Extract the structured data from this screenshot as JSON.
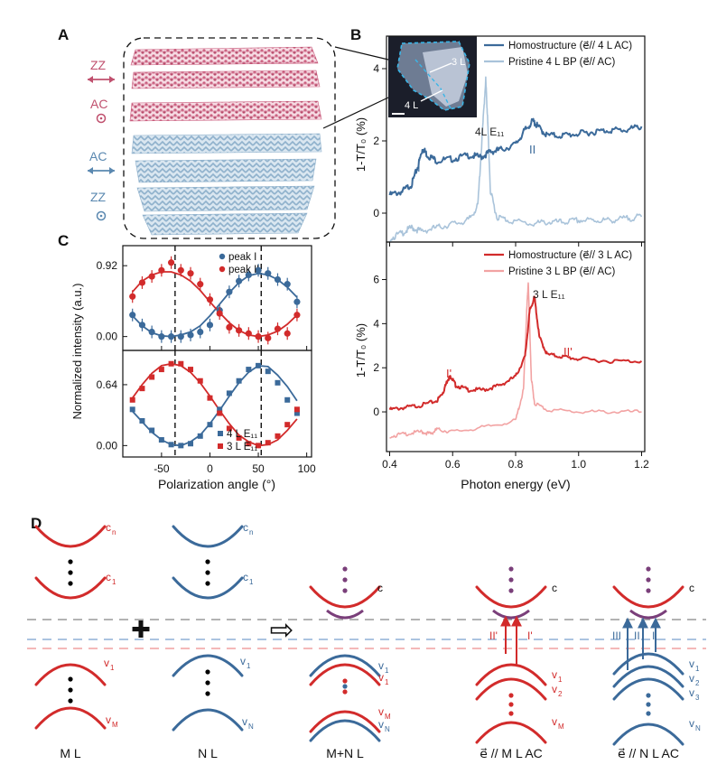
{
  "colors": {
    "red": "#d22b2b",
    "light_red": "#f2a3a3",
    "blue": "#3b6a9a",
    "light_blue": "#a9c3da",
    "purple": "#7a3f7a",
    "gray_dash": "#9a9a9a",
    "blue_dash": "#8fb0d6",
    "red_dash": "#f0a0a0"
  },
  "panelA": {
    "label": "A",
    "zz_top": "ZZ",
    "ac_top": "AC",
    "ac_bottom": "AC",
    "zz_bottom": "ZZ"
  },
  "panelB": {
    "label": "B",
    "inset_labels": [
      "3 L",
      "4 L"
    ],
    "ylabel": "1-T/T₀ (%)",
    "xlabel": "Photon energy (eV)",
    "top": {
      "legend": [
        "Homostructure (e⃗// 4 L AC)",
        "Pristine 4 L BP (e⃗// AC)"
      ],
      "annotations": [
        "I",
        "II",
        "4L E₁₁"
      ]
    },
    "bottom": {
      "legend": [
        "Homostructure (e⃗// 3 L AC)",
        "Pristine 3 L BP (e⃗// AC)"
      ],
      "annotations": [
        "I'",
        "II'",
        "3 L E₁₁"
      ]
    }
  },
  "panelC": {
    "label": "C",
    "ylabel": "Normalized intensity (a.u.)",
    "xlabel": "Polarization angle (°)",
    "top_legend": [
      "peak I",
      "peak I'"
    ],
    "bottom_legend": [
      "4 L E₁₁",
      "3 L E₁₁"
    ]
  },
  "chart_data": [
    {
      "type": "line",
      "title": "Panel B top: 4 L homostructure",
      "xlabel": "Photon energy (eV)",
      "ylabel": "1-T/T0 (%)",
      "xlim": [
        0.39,
        1.21
      ],
      "ylim": [
        -0.8,
        4.9
      ],
      "x_ticks": [
        0.4,
        0.6,
        0.8,
        1.0,
        1.2
      ],
      "y_ticks": [
        0,
        2,
        4
      ],
      "series": [
        {
          "name": "Homostructure (e// 4 L AC)",
          "x": [
            0.4,
            0.44,
            0.47,
            0.49,
            0.505,
            0.52,
            0.55,
            0.6,
            0.65,
            0.69,
            0.72,
            0.75,
            0.8,
            0.83,
            0.855,
            0.87,
            0.9,
            0.95,
            1.0,
            1.05,
            1.1,
            1.15,
            1.2
          ],
          "y": [
            0.5,
            0.6,
            0.8,
            1.3,
            1.8,
            1.6,
            1.45,
            1.5,
            1.6,
            1.55,
            1.7,
            1.75,
            1.9,
            2.3,
            2.55,
            2.4,
            2.15,
            2.15,
            2.2,
            2.25,
            2.3,
            2.3,
            2.4
          ]
        },
        {
          "name": "Pristine 4 L BP (e// AC)",
          "x": [
            0.4,
            0.44,
            0.47,
            0.5,
            0.55,
            0.6,
            0.65,
            0.68,
            0.695,
            0.705,
            0.71,
            0.72,
            0.74,
            0.78,
            0.85,
            0.9,
            0.95,
            1.0,
            1.05,
            1.1,
            1.15,
            1.2
          ],
          "y": [
            -0.7,
            -0.55,
            -0.4,
            -0.5,
            -0.4,
            -0.3,
            -0.2,
            0.2,
            2.3,
            3.7,
            2.8,
            0.6,
            -0.1,
            -0.2,
            -0.3,
            -0.25,
            -0.25,
            -0.2,
            -0.2,
            -0.2,
            -0.15,
            -0.1
          ]
        }
      ]
    },
    {
      "type": "line",
      "title": "Panel B bottom: 3 L homostructure",
      "xlabel": "Photon energy (eV)",
      "ylabel": "1-T/T0 (%)",
      "xlim": [
        0.39,
        1.21
      ],
      "ylim": [
        -1.8,
        7.7
      ],
      "x_ticks": [
        0.4,
        0.6,
        0.8,
        1.0,
        1.2
      ],
      "y_ticks": [
        0,
        2,
        4,
        6
      ],
      "series": [
        {
          "name": "Homostructure (e// 3 L AC)",
          "x": [
            0.4,
            0.45,
            0.5,
            0.55,
            0.57,
            0.585,
            0.595,
            0.61,
            0.65,
            0.7,
            0.75,
            0.8,
            0.83,
            0.845,
            0.86,
            0.875,
            0.9,
            0.95,
            1.0,
            1.1,
            1.2
          ],
          "y": [
            0.1,
            0.2,
            0.3,
            0.5,
            0.9,
            1.5,
            1.6,
            1.2,
            1.0,
            1.0,
            1.2,
            1.6,
            2.5,
            4.6,
            5.2,
            3.4,
            2.6,
            2.5,
            2.4,
            2.3,
            2.3
          ]
        },
        {
          "name": "Pristine 3 L BP (e// AC)",
          "x": [
            0.4,
            0.45,
            0.5,
            0.53,
            0.55,
            0.6,
            0.7,
            0.8,
            0.825,
            0.835,
            0.84,
            0.85,
            0.86,
            0.9,
            1.0,
            1.1,
            1.2
          ],
          "y": [
            -1.1,
            -1.0,
            -0.9,
            -1.0,
            -0.8,
            -0.9,
            -0.7,
            -0.4,
            1.0,
            4.5,
            5.9,
            1.5,
            0.4,
            0.1,
            0.0,
            0.0,
            0.0
          ]
        }
      ]
    },
    {
      "type": "scatter",
      "title": "Panel C top: peak I and peak I'",
      "xlabel": "Polarization angle (°)",
      "ylabel": "Normalized intensity (a.u.)",
      "xlim": [
        -90,
        105
      ],
      "ylim": [
        -0.18,
        1.18
      ],
      "x_ticks": [
        -50,
        0,
        50,
        100
      ],
      "x_tick_labels": [
        "-50",
        "0",
        "50",
        "100"
      ],
      "y_ticks": [
        0,
        0.92
      ],
      "y_tick_labels": [
        "0.00",
        "0.92"
      ],
      "dashed_lines_x": [
        -36,
        53
      ],
      "series": [
        {
          "name": "peak I",
          "color": "blue",
          "x": [
            -80,
            -70,
            -60,
            -50,
            -40,
            -30,
            -20,
            -10,
            0,
            10,
            20,
            30,
            40,
            50,
            60,
            70,
            80,
            90
          ],
          "y": [
            0.28,
            0.15,
            0.06,
            0.0,
            0.0,
            0.0,
            0.02,
            0.06,
            0.15,
            0.34,
            0.58,
            0.72,
            0.8,
            0.86,
            0.82,
            0.74,
            0.68,
            0.45
          ]
        },
        {
          "name": "peak I'",
          "color": "red",
          "x": [
            -80,
            -70,
            -60,
            -50,
            -40,
            -30,
            -20,
            -10,
            0,
            10,
            20,
            30,
            40,
            50,
            60,
            70,
            80,
            90
          ],
          "y": [
            0.52,
            0.7,
            0.78,
            0.86,
            0.96,
            0.86,
            0.82,
            0.68,
            0.48,
            0.3,
            0.12,
            0.08,
            0.04,
            0.0,
            -0.02,
            0.1,
            0.04,
            0.28
          ]
        }
      ],
      "fits": [
        {
          "name": "peak I fit",
          "color": "blue",
          "x": [
            -80,
            -70,
            -60,
            -50,
            -40,
            -30,
            -20,
            -10,
            0,
            10,
            20,
            30,
            40,
            50,
            60,
            70,
            80,
            90
          ],
          "y": [
            0.27,
            0.14,
            0.05,
            0.01,
            0.0,
            0.02,
            0.06,
            0.14,
            0.27,
            0.42,
            0.57,
            0.7,
            0.79,
            0.82,
            0.8,
            0.74,
            0.64,
            0.51
          ]
        },
        {
          "name": "peak I' fit",
          "color": "red",
          "x": [
            -80,
            -70,
            -60,
            -50,
            -40,
            -30,
            -20,
            -10,
            0,
            10,
            20,
            30,
            40,
            50,
            60,
            70,
            80,
            90
          ],
          "y": [
            0.58,
            0.72,
            0.8,
            0.84,
            0.84,
            0.8,
            0.72,
            0.6,
            0.45,
            0.31,
            0.18,
            0.08,
            0.02,
            0.0,
            0.02,
            0.07,
            0.16,
            0.28
          ]
        }
      ]
    },
    {
      "type": "scatter",
      "title": "Panel C bottom: 4 L E11 and 3 L E11",
      "xlabel": "Polarization angle (°)",
      "ylabel": "Normalized intensity (a.u.)",
      "xlim": [
        -90,
        105
      ],
      "ylim": [
        -0.12,
        1.0
      ],
      "x_ticks": [
        -50,
        0,
        50,
        100
      ],
      "x_tick_labels": [
        "-50",
        "0",
        "50",
        "100"
      ],
      "y_ticks": [
        0,
        0.64
      ],
      "y_tick_labels": [
        "0.00",
        "0.64"
      ],
      "dashed_lines_x": [
        -36,
        53
      ],
      "series": [
        {
          "name": "4 L E11",
          "color": "blue",
          "x": [
            -80,
            -70,
            -60,
            -50,
            -40,
            -30,
            -20,
            -10,
            0,
            10,
            20,
            30,
            40,
            50,
            60,
            70,
            80,
            90
          ],
          "y": [
            0.38,
            0.26,
            0.16,
            0.06,
            0.01,
            0.0,
            0.02,
            0.1,
            0.22,
            0.38,
            0.55,
            0.68,
            0.8,
            0.84,
            0.78,
            0.66,
            0.48,
            0.34
          ]
        },
        {
          "name": "3 L E11",
          "color": "red",
          "x": [
            -80,
            -70,
            -60,
            -50,
            -40,
            -30,
            -20,
            -10,
            0,
            10,
            20,
            30,
            40,
            50,
            60,
            70,
            80,
            90
          ],
          "y": [
            0.48,
            0.6,
            0.72,
            0.8,
            0.86,
            0.86,
            0.8,
            0.68,
            0.5,
            0.34,
            0.18,
            0.08,
            0.02,
            0.0,
            0.03,
            0.1,
            0.22,
            0.38
          ]
        }
      ],
      "fits": [
        {
          "name": "4 L E11 fit",
          "color": "blue",
          "x": [
            -80,
            -70,
            -60,
            -50,
            -40,
            -30,
            -20,
            -10,
            0,
            10,
            20,
            30,
            40,
            50,
            60,
            70,
            80,
            90
          ],
          "y": [
            0.36,
            0.25,
            0.14,
            0.06,
            0.01,
            0.0,
            0.04,
            0.11,
            0.23,
            0.37,
            0.52,
            0.66,
            0.77,
            0.84,
            0.83,
            0.74,
            0.62,
            0.47
          ]
        },
        {
          "name": "3 L E11 fit",
          "color": "red",
          "x": [
            -80,
            -70,
            -60,
            -50,
            -40,
            -30,
            -20,
            -10,
            0,
            10,
            20,
            30,
            40,
            50,
            60,
            70,
            80,
            90
          ],
          "y": [
            0.5,
            0.64,
            0.76,
            0.84,
            0.86,
            0.84,
            0.77,
            0.66,
            0.52,
            0.37,
            0.23,
            0.11,
            0.04,
            0.0,
            0.01,
            0.06,
            0.16,
            0.28
          ]
        }
      ]
    }
  ],
  "panelD": {
    "label": "D",
    "groups": [
      {
        "caption": "M L",
        "top_labels": [
          "c",
          "n",
          "c",
          "1"
        ],
        "bottom_labels": [
          "v",
          "1",
          "v",
          "M"
        ]
      },
      {
        "caption": "N L",
        "top_labels": [
          "c",
          "n",
          "c",
          "1"
        ],
        "bottom_labels": [
          "v",
          "1",
          "v",
          "N"
        ]
      },
      {
        "caption": "M+N L",
        "top_labels": [
          "c"
        ],
        "bottom_labels": [
          "v",
          "1",
          "v",
          "1",
          "v",
          "M",
          "v",
          "N"
        ]
      },
      {
        "caption": "e⃗ // M L AC",
        "top_labels": [
          "c"
        ],
        "bottom_labels": [
          "v",
          "1",
          "v",
          "2",
          "v",
          "M"
        ],
        "transitions": [
          "II'",
          "I'"
        ]
      },
      {
        "caption": "e⃗ // N L AC",
        "top_labels": [
          "c"
        ],
        "bottom_labels": [
          "v",
          "1",
          "v",
          "2",
          "v",
          "3",
          "v",
          "N"
        ],
        "transitions": [
          "III",
          "II",
          "I"
        ]
      }
    ],
    "plus_symbol": "✚",
    "arrow_symbol": "⇨"
  }
}
